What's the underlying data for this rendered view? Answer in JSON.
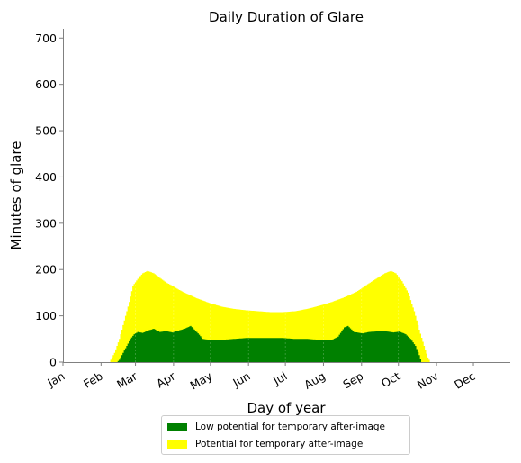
{
  "chart_data": {
    "type": "area",
    "title": "Daily Duration of Glare",
    "xlabel": "Day of year",
    "ylabel": "Minutes of glare",
    "ylim": [
      0,
      720
    ],
    "xlim": [
      1,
      365
    ],
    "y_ticks": [
      "0",
      "100",
      "200",
      "300",
      "400",
      "500",
      "600",
      "700"
    ],
    "x_ticks": [
      {
        "label": "Jan",
        "day": 1
      },
      {
        "label": "Feb",
        "day": 32
      },
      {
        "label": "Mar",
        "day": 60
      },
      {
        "label": "Apr",
        "day": 91
      },
      {
        "label": "May",
        "day": 121
      },
      {
        "label": "Jun",
        "day": 152
      },
      {
        "label": "Jul",
        "day": 182
      },
      {
        "label": "Aug",
        "day": 213
      },
      {
        "label": "Sep",
        "day": 244
      },
      {
        "label": "Oct",
        "day": 274
      },
      {
        "label": "Nov",
        "day": 305
      },
      {
        "label": "Dec",
        "day": 335
      }
    ],
    "stacked": true,
    "series": [
      {
        "name": "Low potential for temporary after-image",
        "color": "#008000",
        "points": [
          [
            45,
            0
          ],
          [
            47,
            5
          ],
          [
            50,
            20
          ],
          [
            53,
            35
          ],
          [
            56,
            50
          ],
          [
            59,
            60
          ],
          [
            62,
            65
          ],
          [
            66,
            63
          ],
          [
            70,
            68
          ],
          [
            75,
            72
          ],
          [
            80,
            65
          ],
          [
            85,
            67
          ],
          [
            90,
            64
          ],
          [
            95,
            68
          ],
          [
            100,
            72
          ],
          [
            105,
            78
          ],
          [
            110,
            65
          ],
          [
            115,
            50
          ],
          [
            120,
            48
          ],
          [
            130,
            48
          ],
          [
            140,
            50
          ],
          [
            150,
            52
          ],
          [
            160,
            52
          ],
          [
            170,
            52
          ],
          [
            180,
            52
          ],
          [
            190,
            50
          ],
          [
            200,
            50
          ],
          [
            210,
            48
          ],
          [
            220,
            48
          ],
          [
            225,
            55
          ],
          [
            230,
            75
          ],
          [
            233,
            78
          ],
          [
            238,
            65
          ],
          [
            245,
            62
          ],
          [
            250,
            65
          ],
          [
            255,
            66
          ],
          [
            260,
            68
          ],
          [
            265,
            66
          ],
          [
            270,
            64
          ],
          [
            275,
            66
          ],
          [
            280,
            60
          ],
          [
            284,
            50
          ],
          [
            288,
            35
          ],
          [
            291,
            15
          ],
          [
            293,
            0
          ]
        ]
      },
      {
        "name": "Potential for temporary after-image",
        "color": "#ffff00",
        "points": [
          [
            39,
            0
          ],
          [
            43,
            20
          ],
          [
            47,
            50
          ],
          [
            51,
            90
          ],
          [
            55,
            130
          ],
          [
            58,
            165
          ],
          [
            62,
            180
          ],
          [
            66,
            192
          ],
          [
            70,
            197
          ],
          [
            75,
            192
          ],
          [
            80,
            182
          ],
          [
            85,
            172
          ],
          [
            90,
            165
          ],
          [
            95,
            157
          ],
          [
            100,
            150
          ],
          [
            110,
            138
          ],
          [
            120,
            128
          ],
          [
            130,
            120
          ],
          [
            140,
            115
          ],
          [
            150,
            112
          ],
          [
            160,
            110
          ],
          [
            170,
            108
          ],
          [
            180,
            108
          ],
          [
            190,
            110
          ],
          [
            200,
            115
          ],
          [
            210,
            122
          ],
          [
            220,
            130
          ],
          [
            230,
            140
          ],
          [
            240,
            152
          ],
          [
            250,
            170
          ],
          [
            257,
            182
          ],
          [
            263,
            192
          ],
          [
            268,
            197
          ],
          [
            272,
            192
          ],
          [
            277,
            175
          ],
          [
            282,
            150
          ],
          [
            287,
            110
          ],
          [
            291,
            70
          ],
          [
            295,
            35
          ],
          [
            298,
            10
          ],
          [
            300,
            0
          ]
        ]
      }
    ],
    "grid": false,
    "legend_position": "below"
  }
}
